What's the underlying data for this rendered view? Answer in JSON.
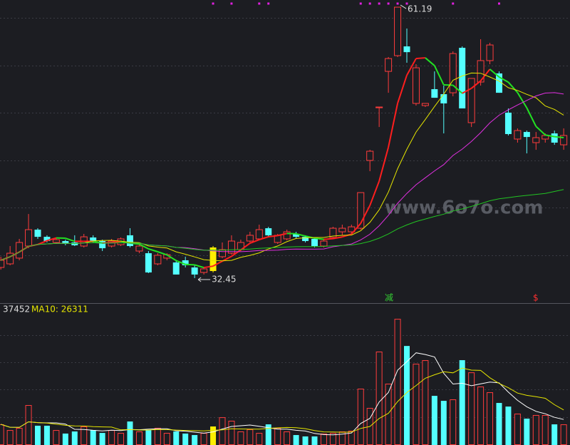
{
  "chart_data": {
    "type": "candlestick",
    "ylim": [
      29.8,
      61.95
    ],
    "volume_ylim": [
      0,
      134000
    ],
    "open": [
      33.58,
      33.96,
      34.57,
      35.85,
      37.59,
      36.83,
      36.23,
      36.38,
      36.23,
      35.85,
      36.76,
      36.38,
      35.85,
      36.0,
      36.99,
      35.32,
      35.09,
      33.96,
      34.57,
      34.11,
      34.34,
      33.58,
      33.05,
      33.2,
      34.72,
      35.09,
      35.47,
      36.38,
      36.61,
      37.74,
      36.23,
      36.61,
      37.14,
      36.83,
      36.61,
      35.85,
      36.76,
      37.36,
      37.36,
      37.74,
      44.93,
      50.52,
      54.38,
      56.05,
      57.03,
      50.98,
      50.75,
      52.49,
      51.96,
      52.11,
      56.88,
      48.94,
      53.25,
      55.52,
      54.16,
      50.0,
      47.2,
      47.95,
      46.82,
      47.2,
      47.8,
      46.59
    ],
    "high": [
      34.72,
      35.85,
      36.61,
      39.25,
      37.74,
      36.99,
      36.76,
      36.53,
      36.99,
      37.14,
      36.99,
      36.53,
      36.61,
      36.76,
      37.74,
      36.08,
      35.32,
      35.09,
      35.09,
      34.34,
      34.72,
      33.81,
      33.58,
      35.85,
      36.23,
      36.99,
      36.53,
      37.36,
      38.12,
      37.89,
      37.14,
      37.59,
      37.36,
      36.99,
      36.76,
      36.61,
      37.89,
      38.12,
      38.12,
      41.52,
      46.06,
      50.6,
      55.9,
      61.19,
      58.92,
      55.14,
      50.98,
      54.38,
      52.87,
      56.5,
      57.03,
      53.63,
      57.79,
      57.41,
      54.38,
      50.45,
      48.33,
      48.1,
      47.95,
      47.8,
      48.1,
      48.33
    ],
    "low": [
      33.35,
      33.81,
      34.34,
      35.62,
      36.61,
      36.23,
      36.08,
      35.93,
      35.85,
      35.7,
      36.23,
      35.32,
      35.7,
      35.85,
      35.7,
      35.09,
      32.98,
      33.81,
      34.34,
      32.83,
      33.58,
      32.45,
      32.83,
      33.05,
      34.57,
      34.94,
      35.32,
      36.23,
      36.46,
      36.83,
      36.08,
      36.46,
      36.61,
      36.23,
      35.7,
      35.7,
      36.61,
      36.99,
      37.14,
      37.59,
      43.79,
      48.48,
      52.11,
      55.9,
      55.29,
      50.75,
      50.6,
      51.58,
      47.8,
      51.74,
      50.45,
      48.48,
      52.87,
      55.14,
      52.11,
      47.58,
      46.82,
      45.68,
      46.06,
      46.82,
      46.59,
      46.06
    ],
    "close": [
      34.34,
      35.09,
      36.23,
      37.59,
      36.83,
      36.38,
      36.53,
      36.08,
      35.93,
      36.83,
      36.38,
      35.62,
      36.38,
      36.61,
      35.85,
      35.85,
      33.05,
      34.87,
      34.94,
      32.83,
      33.81,
      32.83,
      33.43,
      35.7,
      35.47,
      36.38,
      36.23,
      36.99,
      37.59,
      36.99,
      36.99,
      37.36,
      36.83,
      36.38,
      35.85,
      36.38,
      37.74,
      37.74,
      37.89,
      41.52,
      45.91,
      50.6,
      55.74,
      61.19,
      56.42,
      54.76,
      50.98,
      51.58,
      50.98,
      56.27,
      50.45,
      53.63,
      55.52,
      57.18,
      52.11,
      47.73,
      48.1,
      47.42,
      47.35,
      47.58,
      46.82,
      47.58
    ],
    "volume": [
      19500,
      14100,
      16200,
      37700,
      18200,
      18200,
      14100,
      10800,
      12800,
      17500,
      14100,
      11400,
      14100,
      11400,
      22200,
      12800,
      14100,
      16200,
      11400,
      12800,
      10800,
      9400,
      11400,
      17500,
      26200,
      22900,
      12800,
      14800,
      11400,
      19500,
      16200,
      12800,
      9400,
      8100,
      8100,
      10800,
      11400,
      12800,
      13500,
      53200,
      35000,
      88200,
      57900,
      119100,
      93500,
      76700,
      80100,
      46400,
      41700,
      43100,
      80100,
      68600,
      55200,
      49800,
      39700,
      36300,
      29600,
      24900,
      28300,
      28300,
      19500,
      19500
    ],
    "up_color": "#ff3c3c",
    "down_color": "#54ffff",
    "highlight_index": 23,
    "highlight_color": "#ffee00",
    "price_ma": [
      {
        "period": 5,
        "color_up": "#ff1e1e",
        "color_down": "#22e022"
      },
      {
        "period": 10,
        "color": "#e6e600"
      },
      {
        "period": 20,
        "color": "#e030e0"
      },
      {
        "period": 60,
        "color": "#22c422"
      }
    ],
    "volume_ma": [
      {
        "period": 5,
        "color": "#ffffff"
      },
      {
        "period": 10,
        "color": "#e6e600"
      }
    ],
    "volume_text": "37452",
    "volume_ma_text": "MA10: 26311",
    "watermark": "www.6o7o.com",
    "signals": [
      {
        "text": "减",
        "color": "#33cc33"
      },
      {
        "text": "$",
        "color": "#ff3030"
      }
    ]
  }
}
